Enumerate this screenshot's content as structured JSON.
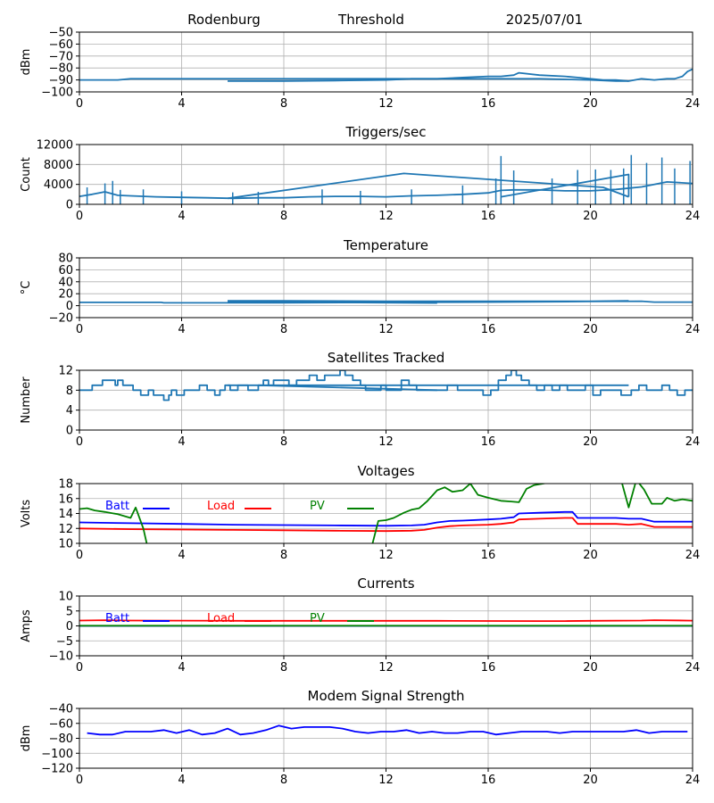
{
  "header": {
    "station": "Rodenburg",
    "mode": "Threshold",
    "date": "2025/07/01"
  },
  "colors": {
    "default": "#1f77b4",
    "batt": "#0000ff",
    "load": "#ff0000",
    "pv": "#008000",
    "grid": "#b0b0b0"
  },
  "chart_data": [
    {
      "id": "threshold",
      "type": "line",
      "title": "",
      "xlabel": "",
      "ylabel": "dBm",
      "xlim": [
        0,
        24
      ],
      "ylim": [
        -100,
        -50
      ],
      "xticks": [
        0,
        4,
        8,
        12,
        16,
        20,
        24
      ],
      "yticks": [
        -100,
        -90,
        -80,
        -70,
        -60,
        -50
      ],
      "ytick_labels": [
        "−100",
        "−90",
        "−80",
        "−70",
        "−60",
        "−50"
      ],
      "grid": true,
      "series": [
        {
          "color": "default",
          "x": [
            0,
            1.5,
            2,
            3,
            4,
            6,
            8,
            10,
            12,
            13,
            14,
            15,
            16,
            16.5,
            17,
            17.2,
            18,
            19,
            19.5,
            20,
            20.5,
            21,
            21.5,
            22,
            22.5,
            23,
            23.3,
            23.6,
            23.8,
            24
          ],
          "y": [
            -90,
            -90,
            -89,
            -89,
            -89,
            -89,
            -89,
            -89,
            -89,
            -89,
            -89,
            -88,
            -87,
            -87,
            -86,
            -84,
            -86,
            -87,
            -88,
            -89,
            -90,
            -90,
            -91,
            -89,
            -90,
            -89,
            -89,
            -87,
            -83,
            -81
          ]
        },
        {
          "color": "default",
          "x": [
            5.8,
            8,
            10,
            12,
            13,
            14,
            16,
            17,
            18,
            20,
            21,
            21.5
          ],
          "y": [
            -91,
            -91,
            -90.5,
            -90,
            -89,
            -89,
            -89,
            -89,
            -89,
            -90,
            -91,
            -91
          ]
        }
      ]
    },
    {
      "id": "triggers",
      "type": "line",
      "title": "Triggers/sec",
      "xlabel": "",
      "ylabel": "Count",
      "xlim": [
        0,
        24
      ],
      "ylim": [
        0,
        12000
      ],
      "xticks": [
        0,
        4,
        8,
        12,
        16,
        20,
        24
      ],
      "yticks": [
        0,
        4000,
        8000,
        12000
      ],
      "grid": true,
      "series": [
        {
          "color": "default",
          "x": [
            0,
            0.5,
            1,
            1.5,
            2,
            3,
            4,
            5,
            6,
            7,
            8,
            9,
            10,
            11,
            12,
            13,
            14,
            15,
            16,
            16.5,
            17,
            18,
            19,
            20,
            21,
            22,
            23,
            24
          ],
          "y": [
            1600,
            2000,
            2500,
            1800,
            1700,
            1500,
            1400,
            1300,
            1200,
            1300,
            1300,
            1500,
            1600,
            1600,
            1500,
            1700,
            1800,
            2000,
            2300,
            2800,
            2900,
            2900,
            2700,
            2700,
            3000,
            3500,
            4500,
            4200
          ]
        },
        {
          "color": "default",
          "x": [
            5.8,
            12.7,
            20.5,
            21.5
          ],
          "y": [
            1200,
            6200,
            3400,
            1500
          ]
        },
        {
          "color": "default",
          "x": [
            16.5,
            21.5,
            21.5
          ],
          "y": [
            1500,
            6000,
            1500
          ]
        }
      ],
      "spikes": {
        "color": "default",
        "x": [
          0.3,
          1.0,
          1.3,
          1.6,
          2.5,
          4.0,
          6.0,
          7.0,
          9.5,
          11.0,
          13.0,
          15.0,
          16.3,
          16.5,
          17.0,
          18.5,
          19.5,
          20.2,
          20.8,
          21.3,
          21.6,
          22.2,
          22.8,
          23.3,
          23.9
        ],
        "y": [
          3400,
          4200,
          4700,
          2900,
          3000,
          2600,
          2400,
          2500,
          3000,
          2700,
          3000,
          3800,
          5200,
          9700,
          6800,
          5200,
          6900,
          7000,
          6900,
          7200,
          9900,
          8300,
          9400,
          7200,
          8700
        ]
      }
    },
    {
      "id": "temperature",
      "type": "line",
      "title": "Temperature",
      "xlabel": "",
      "ylabel": "°C",
      "xlim": [
        0,
        24
      ],
      "ylim": [
        -20,
        80
      ],
      "xticks": [
        0,
        4,
        8,
        12,
        16,
        20,
        24
      ],
      "yticks": [
        -20,
        0,
        20,
        40,
        60,
        80
      ],
      "ytick_labels": [
        "−20",
        "0",
        "20",
        "40",
        "60",
        "80"
      ],
      "grid": true,
      "series": [
        {
          "color": "default",
          "x": [
            0,
            3.2,
            3.3,
            6,
            8,
            12,
            16,
            20,
            22,
            22.5,
            24
          ],
          "y": [
            5.5,
            5.5,
            4.8,
            4.8,
            5,
            5.5,
            6,
            7,
            7.5,
            6,
            6
          ]
        },
        {
          "color": "default",
          "x": [
            5.8,
            8,
            12,
            16,
            20,
            21.5
          ],
          "y": [
            8,
            8,
            7.5,
            7.5,
            7.5,
            8
          ]
        },
        {
          "color": "default",
          "x": [
            5.8,
            14
          ],
          "y": [
            6.5,
            4.5
          ]
        }
      ]
    },
    {
      "id": "satellites",
      "type": "line",
      "title": "Satellites Tracked",
      "xlabel": "",
      "ylabel": "Number",
      "xlim": [
        0,
        24
      ],
      "ylim": [
        0,
        12
      ],
      "xticks": [
        0,
        4,
        8,
        12,
        16,
        20,
        24
      ],
      "yticks": [
        0,
        4,
        8,
        12
      ],
      "grid": true,
      "series": [
        {
          "color": "default",
          "step": true,
          "x": [
            0,
            0.5,
            0.9,
            1.4,
            1.5,
            1.7,
            1.9,
            2.1,
            2.4,
            2.7,
            2.9,
            3.3,
            3.5,
            3.6,
            3.8,
            4.1,
            4.5,
            4.7,
            5,
            5.3,
            5.5,
            5.7,
            5.9,
            6.2,
            6.4,
            6.6,
            7,
            7.2,
            7.4,
            7.6,
            7.8,
            8.2,
            8.5,
            9,
            9.3,
            9.6,
            10,
            10.2,
            10.4,
            10.7,
            11,
            11.2,
            11.8,
            12,
            12.4,
            12.6,
            12.9,
            13.2,
            13.5,
            14,
            14.4,
            14.8,
            15.4,
            15.8,
            16.1,
            16.4,
            16.7,
            16.9,
            17.1,
            17.3,
            17.6,
            17.9,
            18.2,
            18.5,
            18.8,
            19.1,
            19.4,
            19.8,
            20.1,
            20.4,
            20.8,
            21.2,
            21.6,
            21.9,
            22.2,
            22.5,
            22.8,
            23.1,
            23.4,
            23.7,
            24
          ],
          "y": [
            8,
            9,
            10,
            9,
            10,
            9,
            9,
            8,
            7,
            8,
            7,
            6,
            7,
            8,
            7,
            8,
            8,
            9,
            8,
            7,
            8,
            9,
            8,
            9,
            9,
            8,
            9,
            10,
            9,
            10,
            10,
            9,
            10,
            11,
            10,
            11,
            11,
            12,
            11,
            10,
            9,
            8,
            9,
            8,
            8,
            10,
            9,
            8,
            8,
            8,
            9,
            8,
            8,
            7,
            8,
            10,
            11,
            12,
            11,
            10,
            9,
            8,
            9,
            8,
            9,
            8,
            8,
            9,
            7,
            8,
            8,
            7,
            8,
            9,
            8,
            8,
            9,
            8,
            7,
            8,
            8
          ]
        },
        {
          "color": "default",
          "x": [
            5.8,
            21.5
          ],
          "y": [
            9,
            9
          ]
        },
        {
          "color": "default",
          "x": [
            7,
            14
          ],
          "y": [
            9,
            8
          ]
        }
      ]
    },
    {
      "id": "voltages",
      "type": "line",
      "title": "Voltages",
      "xlabel": "",
      "ylabel": "Volts",
      "xlim": [
        0,
        24
      ],
      "ylim": [
        10,
        18
      ],
      "xticks": [
        0,
        4,
        8,
        12,
        16,
        20,
        24
      ],
      "yticks": [
        10,
        12,
        14,
        16,
        18
      ],
      "grid": true,
      "legend": [
        "Batt",
        "Load",
        "PV"
      ],
      "series": [
        {
          "name": "Batt",
          "color": "batt",
          "x": [
            0,
            2,
            4,
            6,
            8,
            10,
            12,
            13,
            13.5,
            14,
            14.5,
            15,
            16,
            16.5,
            17,
            17.2,
            18,
            19,
            19.3,
            19.5,
            20,
            21,
            21.5,
            22,
            22.5,
            23,
            24
          ],
          "y": [
            12.8,
            12.7,
            12.6,
            12.5,
            12.45,
            12.4,
            12.35,
            12.4,
            12.5,
            12.8,
            13.0,
            13.05,
            13.2,
            13.3,
            13.5,
            14.0,
            14.1,
            14.2,
            14.2,
            13.4,
            13.4,
            13.4,
            13.3,
            13.3,
            12.9,
            12.9,
            12.9
          ]
        },
        {
          "name": "Load",
          "color": "load",
          "x": [
            0,
            2,
            4,
            6,
            8,
            10,
            12,
            13,
            13.5,
            14,
            14.5,
            15,
            16,
            16.5,
            17,
            17.2,
            18,
            19,
            19.3,
            19.5,
            20,
            21,
            21.5,
            22,
            22.5,
            23,
            24
          ],
          "y": [
            12.0,
            11.9,
            11.85,
            11.8,
            11.75,
            11.7,
            11.65,
            11.7,
            11.8,
            12.1,
            12.3,
            12.4,
            12.5,
            12.6,
            12.8,
            13.2,
            13.3,
            13.4,
            13.4,
            12.6,
            12.6,
            12.6,
            12.5,
            12.6,
            12.2,
            12.2,
            12.2
          ]
        },
        {
          "name": "PV",
          "color": "pv",
          "segments": [
            {
              "x": [
                0,
                0.3,
                0.6,
                1.0,
                1.5,
                2.0,
                2.2,
                2.5,
                2.7
              ],
              "y": [
                14.6,
                14.7,
                14.4,
                14.2,
                13.9,
                13.4,
                14.8,
                12.0,
                9.0
              ]
            },
            {
              "x": [
                11.4,
                11.7,
                12.0,
                12.3,
                12.7,
                13.0,
                13.3,
                13.6,
                14.0,
                14.3,
                14.6,
                15.0,
                15.3,
                15.6,
                16.0,
                16.5,
                16.9,
                17.2,
                17.5,
                17.8,
                18.3,
                18.8,
                19.0
              ],
              "y": [
                9.0,
                13.0,
                13.1,
                13.4,
                14.1,
                14.5,
                14.7,
                15.6,
                17.1,
                17.5,
                16.9,
                17.1,
                18.0,
                16.5,
                16.1,
                15.7,
                15.6,
                15.5,
                17.3,
                17.8,
                18.1,
                18.3,
                18.5
              ]
            },
            {
              "x": [
                21.2,
                21.5,
                21.8,
                22.1,
                22.4,
                22.8,
                23.0,
                23.3,
                23.6,
                24
              ],
              "y": [
                18.5,
                14.8,
                18.5,
                17.2,
                15.3,
                15.3,
                16.1,
                15.7,
                15.9,
                15.7
              ]
            }
          ]
        }
      ]
    },
    {
      "id": "currents",
      "type": "line",
      "title": "Currents",
      "xlabel": "",
      "ylabel": "Amps",
      "xlim": [
        0,
        24
      ],
      "ylim": [
        -10,
        10
      ],
      "xticks": [
        0,
        4,
        8,
        12,
        16,
        20,
        24
      ],
      "yticks": [
        -10,
        -5,
        0,
        5,
        10
      ],
      "ytick_labels": [
        "−10",
        "−5",
        "0",
        "5",
        "10"
      ],
      "grid": true,
      "legend": [
        "Batt",
        "Load",
        "PV"
      ],
      "series": [
        {
          "name": "Batt",
          "color": "batt",
          "x": [
            0,
            24
          ],
          "y": [
            0,
            0
          ]
        },
        {
          "name": "Load",
          "color": "load",
          "x": [
            0,
            1,
            2,
            4,
            6,
            8,
            10,
            12,
            14,
            16,
            18,
            19,
            20,
            22,
            22.5,
            24
          ],
          "y": [
            1.8,
            1.9,
            1.8,
            1.75,
            1.7,
            1.7,
            1.7,
            1.7,
            1.7,
            1.65,
            1.6,
            1.6,
            1.7,
            1.8,
            1.9,
            1.75
          ]
        },
        {
          "name": "PV",
          "color": "pv",
          "x": [
            0,
            24
          ],
          "y": [
            0.05,
            0.05
          ]
        }
      ]
    },
    {
      "id": "modem",
      "type": "line",
      "title": "Modem Signal Strength",
      "xlabel": "",
      "ylabel": "dBm",
      "xlim": [
        0,
        24
      ],
      "ylim": [
        -120,
        -40
      ],
      "xticks": [
        0,
        4,
        8,
        12,
        16,
        20,
        24
      ],
      "yticks": [
        -120,
        -100,
        -80,
        -60,
        -40
      ],
      "ytick_labels": [
        "−120",
        "−100",
        "−80",
        "−60",
        "−40"
      ],
      "grid": true,
      "series": [
        {
          "color": "batt",
          "x": [
            0.3,
            0.8,
            1.3,
            1.8,
            2.3,
            2.8,
            3.3,
            3.8,
            4.3,
            4.8,
            5.3,
            5.8,
            6.3,
            6.8,
            7.3,
            7.8,
            8.3,
            8.8,
            9.3,
            9.8,
            10.3,
            10.8,
            11.3,
            11.8,
            12.3,
            12.8,
            13.3,
            13.8,
            14.3,
            14.8,
            15.3,
            15.8,
            16.3,
            16.8,
            17.3,
            17.8,
            18.3,
            18.8,
            19.3,
            19.8,
            20.3,
            20.8,
            21.3,
            21.8,
            22.3,
            22.8,
            23.3,
            23.8
          ],
          "y": [
            -73,
            -75,
            -75,
            -71,
            -71,
            -71,
            -69,
            -73,
            -69,
            -75,
            -73,
            -67,
            -75,
            -73,
            -69,
            -63,
            -67,
            -65,
            -65,
            -65,
            -67,
            -71,
            -73,
            -71,
            -71,
            -69,
            -73,
            -71,
            -73,
            -73,
            -71,
            -71,
            -75,
            -73,
            -71,
            -71,
            -71,
            -73,
            -71,
            -71,
            -71,
            -71,
            -71,
            -69,
            -73,
            -71,
            -71,
            -71
          ]
        }
      ]
    }
  ]
}
